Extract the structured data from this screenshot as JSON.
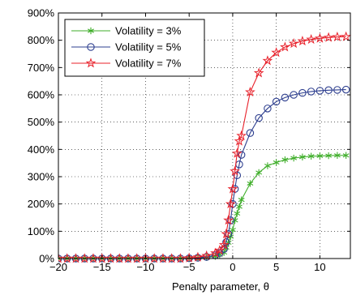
{
  "chart_data": {
    "type": "line",
    "title": "",
    "xlabel": "Penalty parameter,   θ",
    "ylabel": "",
    "xlim": [
      -20,
      13.5
    ],
    "ylim": [
      0,
      900
    ],
    "grid": true,
    "legend_position": "top-left",
    "x_ticks": [
      -20,
      -15,
      -10,
      -5,
      0,
      5,
      10
    ],
    "x_tick_labels": [
      "−20",
      "−15",
      "−10",
      "−5",
      "0",
      "5",
      "10"
    ],
    "y_ticks": [
      0,
      100,
      200,
      300,
      400,
      500,
      600,
      700,
      800,
      900
    ],
    "y_tick_labels": [
      "0%",
      "100%",
      "200%",
      "300%",
      "400%",
      "500%",
      "600%",
      "700%",
      "800%",
      "900%"
    ],
    "x": [
      -20,
      -19,
      -18,
      -17,
      -16,
      -15,
      -14,
      -13,
      -12,
      -11,
      -10,
      -9,
      -8,
      -7,
      -6,
      -5,
      -4,
      -3,
      -2,
      -1.5,
      -1,
      -0.75,
      -0.5,
      -0.25,
      0,
      0.25,
      0.5,
      0.75,
      1,
      2,
      3,
      4,
      5,
      6,
      7,
      8,
      9,
      10,
      11,
      12,
      13
    ],
    "series": [
      {
        "name": "Volatility = 3%",
        "color": "#3fae2a",
        "marker": "asterisk",
        "values": [
          0,
          0,
          0,
          0,
          0,
          0,
          0,
          0,
          0,
          0,
          0,
          0,
          0,
          0,
          0,
          1,
          2,
          4,
          8,
          14,
          22,
          40,
          58,
          80,
          105,
          140,
          165,
          190,
          215,
          275,
          315,
          340,
          352,
          362,
          368,
          372,
          375,
          376,
          377,
          378,
          378
        ]
      },
      {
        "name": "Volatility = 5%",
        "color": "#2e3f8f",
        "marker": "circle",
        "values": [
          0,
          0,
          0,
          0,
          0,
          0,
          0,
          0,
          0,
          0,
          0,
          0,
          0,
          0,
          0,
          1,
          3,
          6,
          12,
          20,
          35,
          60,
          90,
          140,
          200,
          255,
          305,
          345,
          380,
          460,
          515,
          550,
          575,
          590,
          600,
          607,
          612,
          615,
          617,
          618,
          619
        ]
      },
      {
        "name": "Volatility = 7%",
        "color": "#e8202a",
        "marker": "star",
        "values": [
          0,
          0,
          0,
          0,
          0,
          0,
          0,
          0,
          0,
          0,
          0,
          0,
          0,
          0,
          0,
          2,
          5,
          10,
          20,
          30,
          50,
          90,
          140,
          200,
          255,
          320,
          385,
          430,
          450,
          610,
          680,
          725,
          755,
          775,
          788,
          797,
          803,
          807,
          810,
          812,
          813
        ]
      }
    ]
  }
}
